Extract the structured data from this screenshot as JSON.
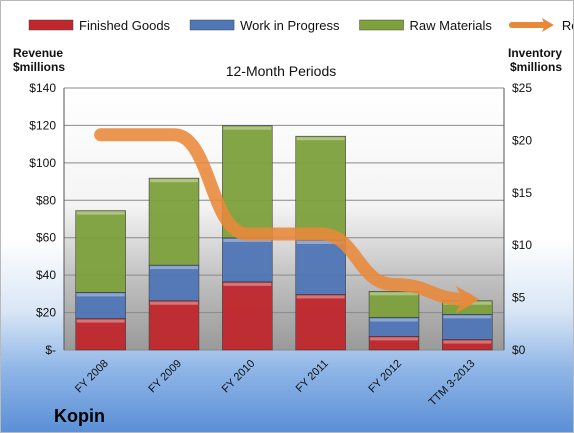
{
  "company": "Kopin",
  "chart_data": {
    "type": "bar",
    "stacked": true,
    "subtitle": "12-Month Periods",
    "left_axis_label": [
      "Revenue",
      "$millions"
    ],
    "right_axis_label": [
      "Inventory",
      "$millions"
    ],
    "categories": [
      "FY 2008",
      "FY 2009",
      "FY 2010",
      "FY 2011",
      "FY 2012",
      "TTM 3-2013"
    ],
    "left_axis_ticks": [
      "$-",
      "$20",
      "$40",
      "$60",
      "$80",
      "$100",
      "$120",
      "$140"
    ],
    "right_axis_ticks": [
      "$0",
      "$5",
      "$10",
      "$15",
      "$20",
      "$25"
    ],
    "ylim_left": [
      0,
      140
    ],
    "ylim_right": [
      0,
      25
    ],
    "series": [
      {
        "name": "Finished Goods",
        "axis": "right",
        "color": "#c0272d",
        "values": [
          3.0,
          4.7,
          6.5,
          5.3,
          1.3,
          1.0
        ]
      },
      {
        "name": "Work in Progress",
        "axis": "right",
        "color": "#4f76b6",
        "values": [
          2.5,
          3.4,
          4.2,
          5.2,
          1.8,
          2.4
        ]
      },
      {
        "name": "Raw Materials",
        "axis": "right",
        "color": "#7ea13c",
        "values": [
          7.8,
          8.3,
          10.7,
          9.9,
          2.5,
          1.3
        ]
      },
      {
        "name": "Revenue",
        "axis": "left",
        "type": "line",
        "color": "#e8893a",
        "values": [
          115,
          115,
          62,
          62,
          35,
          27
        ]
      }
    ],
    "legend_position": "top",
    "grid": true
  }
}
